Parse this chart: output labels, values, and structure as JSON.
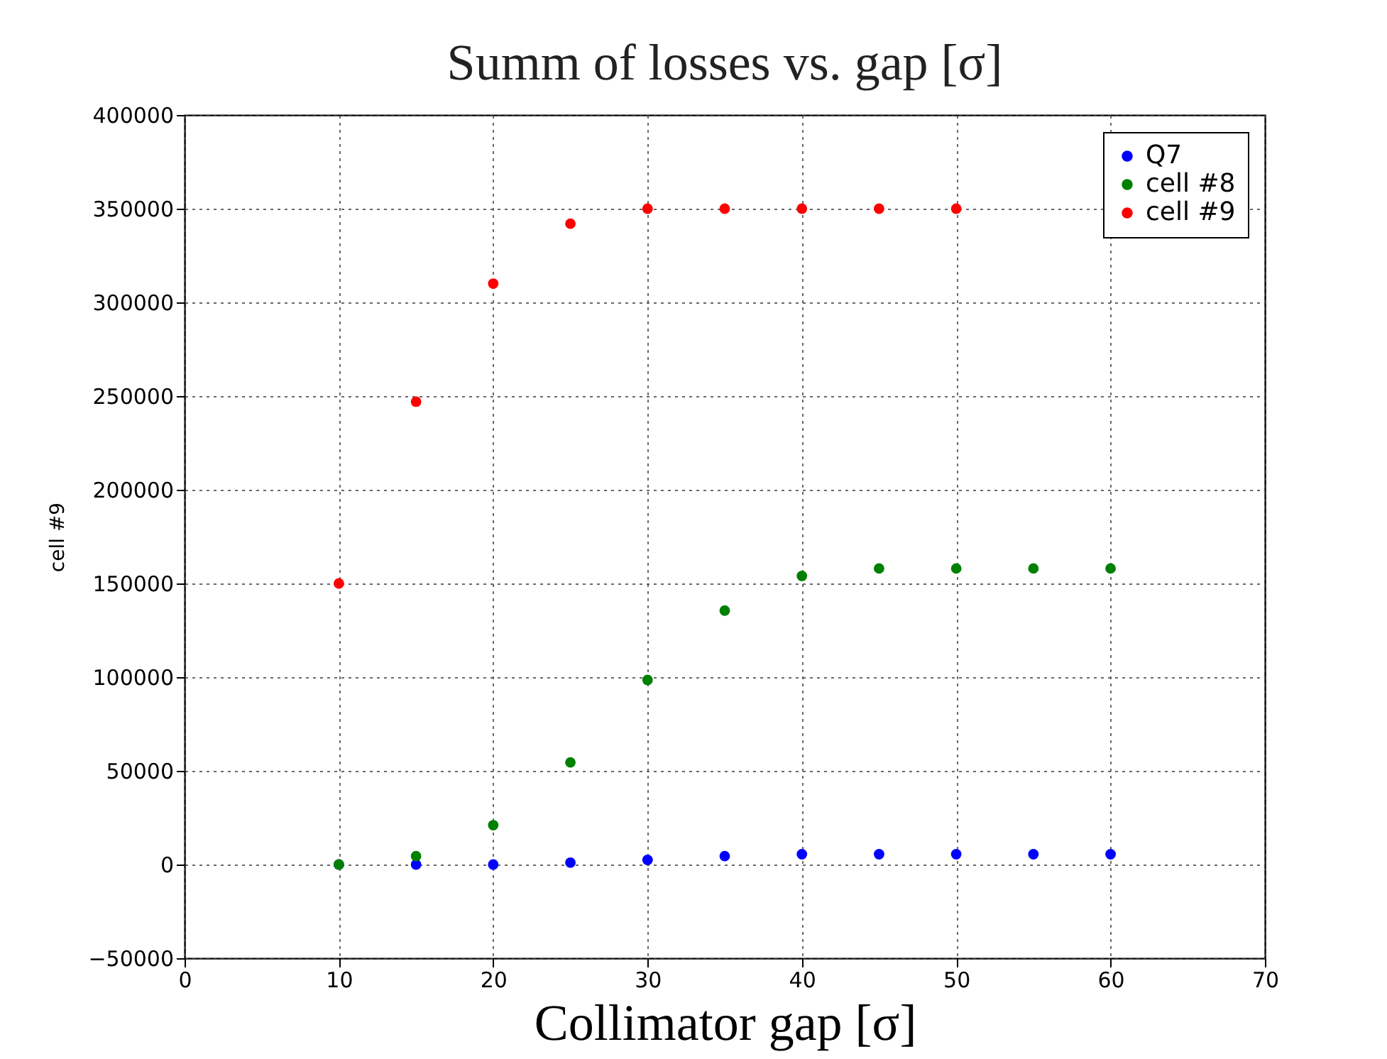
{
  "chart_data": {
    "type": "scatter",
    "title": "Summ of losses vs. gap [σ]",
    "xlabel": "Collimator gap [σ]",
    "ylabel": "cell #9",
    "x": [
      10,
      15,
      20,
      25,
      30,
      35,
      40,
      45,
      50,
      55,
      60
    ],
    "series": [
      {
        "name": "Q7",
        "color": "#0000ff",
        "values": [
          0,
          0,
          0,
          1000,
          2500,
          4500,
          5500,
          5500,
          5500,
          5500,
          5500
        ]
      },
      {
        "name": "cell #8",
        "color": "#008000",
        "values": [
          0,
          4500,
          21000,
          54500,
          98500,
          135500,
          154000,
          158000,
          158000,
          158000,
          158000
        ]
      },
      {
        "name": "cell #9",
        "color": "#ff0000",
        "values": [
          150000,
          247000,
          310000,
          342000,
          350000,
          350000,
          350000,
          350000,
          350000,
          null,
          null
        ]
      }
    ],
    "xlim": [
      0,
      70
    ],
    "xticks": [
      0,
      10,
      20,
      30,
      40,
      50,
      60,
      70
    ],
    "ylim": [
      -50000,
      400000
    ],
    "yticks": [
      -50000,
      0,
      50000,
      100000,
      150000,
      200000,
      250000,
      300000,
      350000,
      400000
    ],
    "grid": true,
    "legend": "top right",
    "marker": "circle"
  }
}
